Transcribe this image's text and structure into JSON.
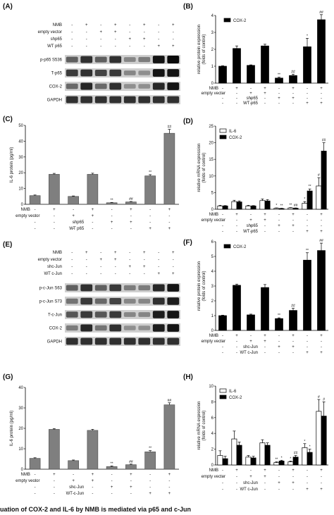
{
  "panels": {
    "A": {
      "label": "(A)",
      "rows": [
        "NMB",
        "empty vector",
        "shp65",
        "WT p65"
      ],
      "signs": [
        [
          "-",
          "+",
          "-",
          "+",
          "-",
          "+",
          "-",
          "+"
        ],
        [
          "-",
          "-",
          "+",
          "+",
          "-",
          "-",
          "-",
          "-"
        ],
        [
          "-",
          "-",
          "-",
          "-",
          "+",
          "+",
          "-",
          "-"
        ],
        [
          "-",
          "-",
          "-",
          "-",
          "-",
          "-",
          "+",
          "+"
        ]
      ],
      "blots": [
        {
          "name": "p-p65 S536",
          "intensity": [
            0.55,
            0.8,
            0.55,
            0.8,
            0.35,
            0.4,
            0.95,
            1.0
          ]
        },
        {
          "name": "T-p65",
          "intensity": [
            0.75,
            0.8,
            0.7,
            0.75,
            0.35,
            0.3,
            0.95,
            0.95
          ]
        },
        {
          "name": "COX-2",
          "intensity": [
            0.5,
            0.85,
            0.5,
            0.8,
            0.3,
            0.3,
            0.85,
            0.95
          ]
        },
        {
          "name": "GAPDH",
          "intensity": [
            0.8,
            0.8,
            0.8,
            0.8,
            0.8,
            0.8,
            0.8,
            0.8
          ]
        }
      ]
    },
    "E": {
      "label": "(E)",
      "rows": [
        "NMB",
        "empty vector",
        "shc-Jun",
        "WT c-Jun"
      ],
      "signs": [
        [
          "-",
          "+",
          "-",
          "+",
          "-",
          "+",
          "-",
          "+"
        ],
        [
          "-",
          "-",
          "+",
          "+",
          "-",
          "-",
          "-",
          "-"
        ],
        [
          "-",
          "-",
          "-",
          "-",
          "+",
          "+",
          "-",
          "-"
        ],
        [
          "-",
          "-",
          "-",
          "-",
          "-",
          "-",
          "+",
          "+"
        ]
      ],
      "blots": [
        {
          "name": "p-c-Jun S63",
          "intensity": [
            0.55,
            0.8,
            0.55,
            0.75,
            0.4,
            0.4,
            0.85,
            0.95
          ]
        },
        {
          "name": "p-c-Jun S73",
          "intensity": [
            0.45,
            0.75,
            0.5,
            0.7,
            0.35,
            0.35,
            0.8,
            0.9
          ]
        },
        {
          "name": "T-c-Jun",
          "intensity": [
            0.6,
            0.75,
            0.6,
            0.75,
            0.35,
            0.35,
            0.9,
            0.95
          ]
        },
        {
          "name": "COX-2",
          "intensity": [
            0.4,
            0.85,
            0.45,
            0.8,
            0.3,
            0.3,
            0.9,
            0.95
          ]
        },
        {
          "name": "GAPDH",
          "intensity": [
            0.8,
            0.8,
            0.8,
            0.8,
            0.8,
            0.8,
            0.8,
            0.8
          ]
        }
      ]
    }
  },
  "chart_data": [
    {
      "id": "B",
      "panel_label": "(B)",
      "type": "bar",
      "ylabel": "relative protein expression\n(folds of control)",
      "ylim": [
        0,
        4
      ],
      "yticks": [
        0,
        1,
        2,
        3,
        4
      ],
      "legend": [
        "COX-2"
      ],
      "legend_position": "top-left",
      "series": [
        {
          "name": "COX-2",
          "color": "#000000",
          "fill": "#000000",
          "values": [
            1.0,
            2.05,
            1.05,
            2.2,
            0.3,
            0.45,
            2.15,
            3.75
          ],
          "errors": [
            0.03,
            0.15,
            0.03,
            0.1,
            0.05,
            0.08,
            0.5,
            0.3
          ],
          "marks": [
            "",
            "",
            "",
            "",
            "**",
            "##",
            "*",
            "##"
          ]
        }
      ],
      "rows": [
        "NMB",
        "empty vector",
        "shp65",
        "WT p65"
      ],
      "signs": [
        [
          "-",
          "+",
          "-",
          "+",
          "-",
          "+",
          "-",
          "+"
        ],
        [
          "-",
          "-",
          "+",
          "+",
          "-",
          "-",
          "-",
          "-"
        ],
        [
          "-",
          "-",
          "-",
          "-",
          "+",
          "+",
          "-",
          "-"
        ],
        [
          "-",
          "-",
          "-",
          "-",
          "-",
          "-",
          "+",
          "+"
        ]
      ]
    },
    {
      "id": "C",
      "panel_label": "(C)",
      "type": "bar",
      "ylabel": "IL-6 protein (pg/ml)",
      "ylim": [
        0,
        50
      ],
      "yticks": [
        0,
        10,
        20,
        30,
        40,
        50
      ],
      "legend": [],
      "legend_position": "",
      "series": [
        {
          "name": "",
          "color": "#555555",
          "fill": "#7f7f7f",
          "values": [
            5.5,
            19,
            5,
            19,
            1,
            1.5,
            18,
            45
          ],
          "errors": [
            0.4,
            0.6,
            0.3,
            0.7,
            0.2,
            0.3,
            0.8,
            2.5
          ],
          "marks": [
            "",
            "",
            "",
            "",
            "**",
            "##",
            "**",
            "##"
          ]
        }
      ],
      "rows": [
        "NMB",
        "empty vector",
        "shp65",
        "WT p65"
      ],
      "signs": [
        [
          "-",
          "+",
          "-",
          "+",
          "-",
          "+",
          "-",
          "+"
        ],
        [
          "-",
          "-",
          "+",
          "+",
          "-",
          "-",
          "-",
          "-"
        ],
        [
          "-",
          "-",
          "-",
          "-",
          "+",
          "+",
          "-",
          "-"
        ],
        [
          "-",
          "-",
          "-",
          "-",
          "-",
          "-",
          "+",
          "+"
        ]
      ]
    },
    {
      "id": "D",
      "panel_label": "(D)",
      "type": "bar",
      "ylabel": "relative mRNA expression\n(folds of control)",
      "ylim": [
        0,
        25
      ],
      "yticks": [
        0,
        5,
        10,
        15,
        20,
        25
      ],
      "legend": [
        "IL-6",
        "COX-2"
      ],
      "legend_position": "top-left",
      "series": [
        {
          "name": "IL-6",
          "color": "#000000",
          "fill": "#ffffff",
          "values": [
            1.0,
            2.3,
            1.0,
            2.6,
            0.3,
            0.4,
            1.8,
            7.0
          ],
          "errors": [
            0.2,
            0.4,
            0.2,
            0.5,
            0.1,
            0.1,
            0.5,
            2.5
          ],
          "marks": [
            "",
            "",
            "",
            "",
            "*",
            "**",
            "*",
            "#"
          ]
        },
        {
          "name": "COX-2",
          "color": "#000000",
          "fill": "#000000",
          "values": [
            1.0,
            2.2,
            1.0,
            2.5,
            0.2,
            0.3,
            5.5,
            17.5
          ],
          "errors": [
            0.1,
            0.3,
            0.1,
            0.4,
            0.1,
            0.1,
            0.6,
            2.5
          ],
          "marks": [
            "",
            "",
            "",
            "",
            "**",
            "##",
            "**",
            "##"
          ]
        }
      ],
      "rows": [
        "NMB",
        "empty vector",
        "shp65",
        "WT p65"
      ],
      "signs": [
        [
          "-",
          "+",
          "-",
          "+",
          "-",
          "+",
          "-",
          "+"
        ],
        [
          "-",
          "-",
          "+",
          "+",
          "-",
          "-",
          "-",
          "-"
        ],
        [
          "-",
          "-",
          "-",
          "-",
          "+",
          "+",
          "-",
          "-"
        ],
        [
          "-",
          "-",
          "-",
          "-",
          "-",
          "-",
          "+",
          "+"
        ]
      ]
    },
    {
      "id": "F",
      "panel_label": "(F)",
      "type": "bar",
      "ylabel": "relative protein expression\n(folds of control)",
      "ylim": [
        0,
        6
      ],
      "yticks": [
        0,
        1,
        2,
        3,
        4,
        5,
        6
      ],
      "legend": [
        "COX-2"
      ],
      "legend_position": "top-left",
      "series": [
        {
          "name": "COX-2",
          "color": "#000000",
          "fill": "#000000",
          "values": [
            1.0,
            3.05,
            1.05,
            2.9,
            0.8,
            1.35,
            4.75,
            5.4
          ],
          "errors": [
            0.03,
            0.08,
            0.05,
            0.2,
            0.05,
            0.15,
            0.5,
            0.5
          ],
          "marks": [
            "",
            "",
            "",
            "",
            "**",
            "##",
            "**",
            "##"
          ]
        }
      ],
      "rows": [
        "NMB",
        "empty vector",
        "shc-Jun",
        "WT c-Jun"
      ],
      "signs": [
        [
          "-",
          "+",
          "-",
          "+",
          "-",
          "+",
          "-",
          "+"
        ],
        [
          "-",
          "-",
          "+",
          "+",
          "-",
          "-",
          "-",
          "-"
        ],
        [
          "-",
          "-",
          "-",
          "-",
          "+",
          "+",
          "-",
          "-"
        ],
        [
          "-",
          "-",
          "-",
          "-",
          "-",
          "-",
          "+",
          "+"
        ]
      ]
    },
    {
      "id": "G",
      "panel_label": "(G)",
      "type": "bar",
      "ylabel": "IL-6 protein (pg/ml)",
      "ylim": [
        0,
        40
      ],
      "yticks": [
        0,
        10,
        20,
        30,
        40
      ],
      "legend": [],
      "legend_position": "",
      "series": [
        {
          "name": "",
          "color": "#555555",
          "fill": "#7f7f7f",
          "values": [
            5.3,
            19.5,
            4.2,
            19,
            1.3,
            2.2,
            8.5,
            31.5
          ],
          "errors": [
            0.3,
            0.4,
            0.3,
            0.5,
            0.3,
            0.3,
            0.6,
            1.0
          ],
          "marks": [
            "",
            "",
            "",
            "",
            "**",
            "##",
            "**",
            "##"
          ]
        }
      ],
      "rows": [
        "NMB",
        "empty vector",
        "shc-Jun",
        "WT c-Jun"
      ],
      "signs": [
        [
          "-",
          "+",
          "-",
          "+",
          "-",
          "+",
          "-",
          "+"
        ],
        [
          "-",
          "-",
          "+",
          "+",
          "-",
          "-",
          "-",
          "-"
        ],
        [
          "-",
          "-",
          "-",
          "-",
          "+",
          "+",
          "-",
          "-"
        ],
        [
          "-",
          "-",
          "-",
          "-",
          "-",
          "-",
          "+",
          "+"
        ]
      ]
    },
    {
      "id": "H",
      "panel_label": "(H)",
      "type": "bar",
      "ylabel": "relative mRNA expression\n(folds of control)",
      "ylim": [
        0,
        10
      ],
      "yticks": [
        0,
        2,
        4,
        6,
        8,
        10
      ],
      "legend": [
        "IL-6",
        "COX-2"
      ],
      "legend_position": "top-left",
      "series": [
        {
          "name": "IL-6",
          "color": "#000000",
          "fill": "#ffffff",
          "values": [
            1.2,
            3.3,
            1.0,
            2.8,
            0.3,
            0.4,
            2.2,
            6.8
          ],
          "errors": [
            0.6,
            1.0,
            0.2,
            0.4,
            0.1,
            0.1,
            0.5,
            1.5
          ],
          "marks": [
            "",
            "",
            "",
            "",
            "**",
            "*",
            "*",
            "#"
          ]
        },
        {
          "name": "COX-2",
          "color": "#000000",
          "fill": "#000000",
          "values": [
            0.8,
            2.5,
            0.9,
            2.5,
            0.5,
            1.0,
            1.6,
            6.2
          ],
          "errors": [
            0.3,
            0.4,
            0.2,
            0.3,
            0.1,
            0.2,
            0.4,
            1.8
          ],
          "marks": [
            "",
            "",
            "",
            "",
            "*",
            "##",
            "*",
            "#"
          ]
        }
      ],
      "rows": [
        "NMB",
        "empty vector",
        "shc-Jun",
        "WT c-Jun"
      ],
      "signs": [
        [
          "-",
          "+",
          "-",
          "+",
          "-",
          "+",
          "-",
          "+"
        ],
        [
          "-",
          "-",
          "+",
          "+",
          "-",
          "-",
          "-",
          "-"
        ],
        [
          "-",
          "-",
          "-",
          "-",
          "+",
          "+",
          "-",
          "-"
        ],
        [
          "-",
          "-",
          "-",
          "-",
          "-",
          "-",
          "+",
          "+"
        ]
      ]
    }
  ],
  "caption": "uation of COX-2 and IL-6 by NMB is mediated via p65 and c-Jun"
}
